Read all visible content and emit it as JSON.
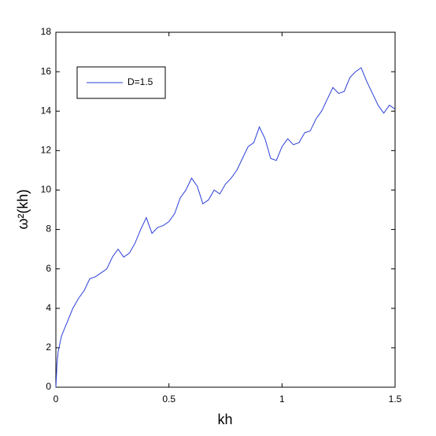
{
  "chart_data": {
    "type": "line",
    "xlabel": "kh",
    "ylabel": "ω²(kh)",
    "x": [
      0,
      0.005,
      0.01,
      0.025,
      0.05,
      0.075,
      0.1,
      0.125,
      0.15,
      0.175,
      0.2,
      0.225,
      0.25,
      0.275,
      0.3,
      0.325,
      0.35,
      0.375,
      0.4,
      0.425,
      0.45,
      0.475,
      0.5,
      0.525,
      0.55,
      0.575,
      0.6,
      0.625,
      0.65,
      0.675,
      0.7,
      0.725,
      0.75,
      0.775,
      0.8,
      0.825,
      0.85,
      0.875,
      0.9,
      0.925,
      0.95,
      0.975,
      1.0,
      1.025,
      1.05,
      1.075,
      1.1,
      1.125,
      1.15,
      1.175,
      1.2,
      1.225,
      1.25,
      1.275,
      1.3,
      1.325,
      1.35,
      1.375,
      1.4,
      1.425,
      1.45,
      1.475,
      1.5
    ],
    "series": [
      {
        "name": "D=1.5",
        "color": "#2b3fd6",
        "values": [
          0,
          1.2,
          1.8,
          2.6,
          3.3,
          4.0,
          4.5,
          4.9,
          5.5,
          5.6,
          5.8,
          6.0,
          6.6,
          7.0,
          6.6,
          6.8,
          7.3,
          8.0,
          8.6,
          7.8,
          8.1,
          8.2,
          8.4,
          8.8,
          9.6,
          10.0,
          10.6,
          10.2,
          9.3,
          9.5,
          10.0,
          9.8,
          10.3,
          10.6,
          11.0,
          11.6,
          12.2,
          12.4,
          13.2,
          12.6,
          11.6,
          11.5,
          12.2,
          12.6,
          12.3,
          12.4,
          12.9,
          13.0,
          13.6,
          14.0,
          14.6,
          15.2,
          14.9,
          15.0,
          15.7,
          16.0,
          16.2,
          15.5,
          14.9,
          14.3,
          13.9,
          14.3,
          14.1
        ]
      }
    ],
    "xlim": [
      0,
      1.5
    ],
    "xticks": [
      0,
      0.5,
      1,
      1.5
    ],
    "ylim": [
      0,
      18
    ],
    "yticks": [
      0,
      2,
      4,
      6,
      8,
      10,
      12,
      14,
      16,
      18
    ],
    "legend": "upper left"
  }
}
